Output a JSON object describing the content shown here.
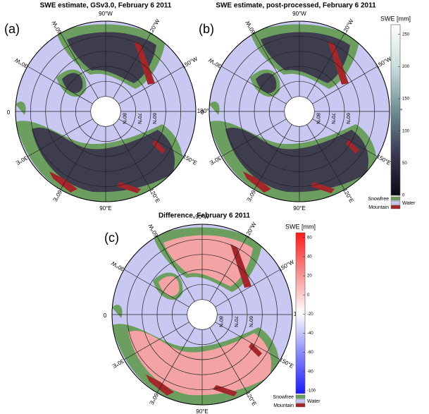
{
  "panels": [
    {
      "label": "(a)",
      "title": "SWE estimate, GSv3.0, February 6 2011"
    },
    {
      "label": "(b)",
      "title": "SWE estimate, post-processed, February 6 2011"
    },
    {
      "label": "(c)",
      "title": "Difference, February 6 2011"
    }
  ],
  "meridian_labels": [
    "180°",
    "150°W",
    "120°W",
    "90°W",
    "60°W",
    "30°W",
    "0",
    "30°E",
    "60°E",
    "90°E",
    "120°E",
    "150°E"
  ],
  "latitude_labels": [
    "80°N",
    "70°N",
    "60°N"
  ],
  "colorbars": [
    {
      "title": "SWE [mm]",
      "lim": [
        0,
        265
      ],
      "ticks": [
        0,
        50,
        100,
        150,
        200,
        250
      ],
      "colors": [
        "#0b0b16",
        "#3a3a55",
        "#6f8f95",
        "#c9dcdc",
        "#ffffff"
      ],
      "legend": [
        {
          "name": "Snowfree",
          "color": "#6b9e5f"
        },
        {
          "name": "Water",
          "color": "#c8c8f2"
        },
        {
          "name": "Mountain",
          "color": "#a3262a"
        }
      ]
    },
    {
      "title": "SWE [mm]",
      "lim": [
        -103,
        65
      ],
      "ticks": [
        -100,
        -80,
        -60,
        -40,
        -20,
        0,
        20,
        40,
        60
      ],
      "colors": [
        "#1a1aff",
        "#8a8af5",
        "#ffffff",
        "#f59090",
        "#ff1a1a"
      ],
      "legend": [
        {
          "name": "Snowfree",
          "color": "#6b9e5f"
        },
        {
          "name": "Water",
          "color": "#c8c8f2"
        },
        {
          "name": "Mountain",
          "color": "#a3262a"
        }
      ]
    }
  ]
}
